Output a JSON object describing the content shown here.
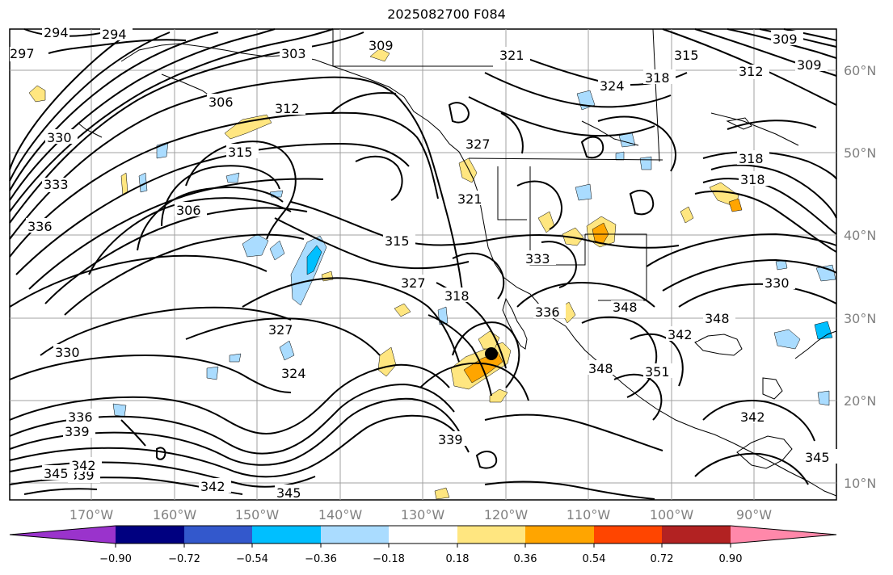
{
  "title": "2025082700 F084",
  "map": {
    "lon_labels": [
      "170°W",
      "160°W",
      "150°W",
      "140°W",
      "130°W",
      "120°W",
      "110°W",
      "100°W",
      "90°W"
    ],
    "lat_labels": [
      "60°N",
      "50°N",
      "40°N",
      "30°N",
      "20°N",
      "10°N"
    ],
    "contour_labels": [
      "294",
      "294",
      "297",
      "303",
      "309",
      "321",
      "315",
      "312",
      "309",
      "306",
      "312",
      "324",
      "318",
      "315",
      "327",
      "330",
      "333",
      "336",
      "318",
      "306",
      "315",
      "321",
      "327",
      "318",
      "333",
      "348",
      "336",
      "324",
      "327",
      "330",
      "339",
      "336",
      "339",
      "342",
      "342",
      "339",
      "342",
      "345",
      "345",
      "351",
      "348",
      "342",
      "345",
      "318",
      "330",
      "348",
      "309"
    ]
  },
  "colorbar": {
    "tick_labels": [
      "−0.90",
      "−0.72",
      "−0.54",
      "−0.36",
      "−0.18",
      "0.18",
      "0.36",
      "0.54",
      "0.72",
      "0.90"
    ],
    "colors": [
      "#9a33cc",
      "#000080",
      "#3358cc",
      "#00bfff",
      "#aadcff",
      "#ffffff",
      "#ffe680",
      "#ffa500",
      "#ff4500",
      "#b22222",
      "#ff88aa"
    ]
  }
}
